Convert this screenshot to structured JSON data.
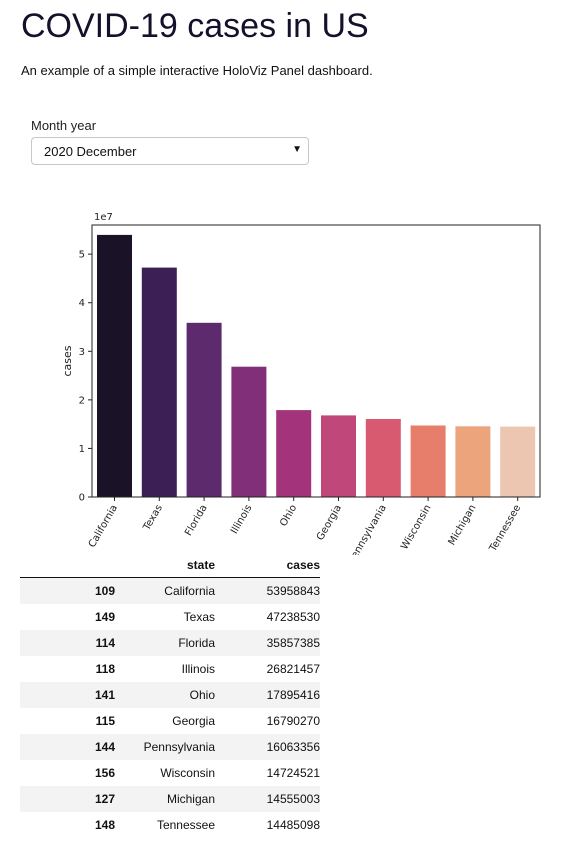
{
  "header": {
    "title": "COVID-19 cases in US",
    "subtitle": "An example of a simple interactive HoloViz Panel dashboard."
  },
  "month_select": {
    "label": "Month year",
    "value": "2020 December"
  },
  "chart_data": {
    "type": "bar",
    "categories": [
      "California",
      "Texas",
      "Florida",
      "Illinois",
      "Ohio",
      "Georgia",
      "Pennsylvania",
      "Wisconsin",
      "Michigan",
      "Tennessee"
    ],
    "values": [
      53958843,
      47238530,
      35857385,
      26821457,
      17895416,
      16790270,
      16063356,
      14724521,
      14555003,
      14485098
    ],
    "ylabel": "cases",
    "xlabel": "",
    "offset_text": "1e7",
    "yticks": [
      "0",
      "1",
      "2",
      "3",
      "4",
      "5"
    ],
    "ylim": [
      0,
      56000000
    ],
    "colors": [
      "#1a1227",
      "#3c1f55",
      "#5e2a6e",
      "#822f79",
      "#a3347b",
      "#bf4779",
      "#d75a71",
      "#e77e6b",
      "#eba47b",
      "#ecc6b1"
    ],
    "grid": false
  },
  "table": {
    "columns": [
      "",
      "state",
      "cases"
    ],
    "rows": [
      {
        "index": "109",
        "state": "California",
        "cases": "53958843"
      },
      {
        "index": "149",
        "state": "Texas",
        "cases": "47238530"
      },
      {
        "index": "114",
        "state": "Florida",
        "cases": "35857385"
      },
      {
        "index": "118",
        "state": "Illinois",
        "cases": "26821457"
      },
      {
        "index": "141",
        "state": "Ohio",
        "cases": "17895416"
      },
      {
        "index": "115",
        "state": "Georgia",
        "cases": "16790270"
      },
      {
        "index": "144",
        "state": "Pennsylvania",
        "cases": "16063356"
      },
      {
        "index": "156",
        "state": "Wisconsin",
        "cases": "14724521"
      },
      {
        "index": "127",
        "state": "Michigan",
        "cases": "14555003"
      },
      {
        "index": "148",
        "state": "Tennessee",
        "cases": "14485098"
      }
    ]
  }
}
